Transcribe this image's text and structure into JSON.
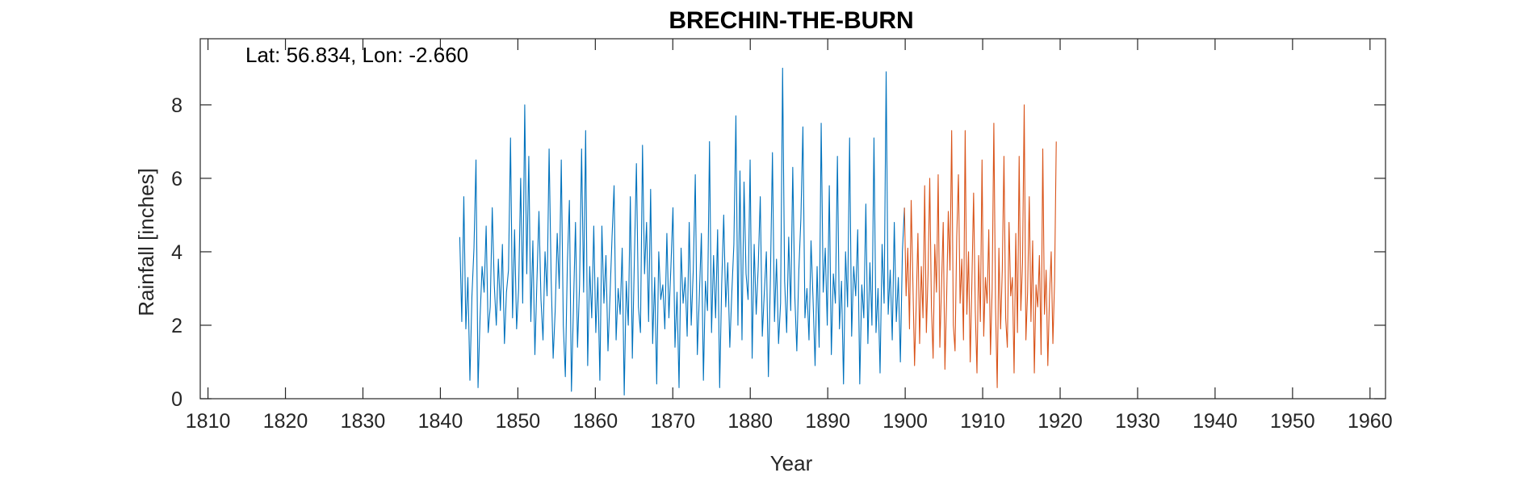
{
  "chart_data": {
    "type": "line",
    "title": "BRECHIN-THE-BURN",
    "annotation": "Lat: 56.834, Lon: -2.660",
    "xlabel": "Year",
    "ylabel": "Rainfall [inches]",
    "xlim": [
      1809,
      1962
    ],
    "ylim": [
      0,
      9.8
    ],
    "xticks": [
      1810,
      1820,
      1830,
      1840,
      1850,
      1860,
      1870,
      1880,
      1890,
      1900,
      1910,
      1920,
      1930,
      1940,
      1950,
      1960
    ],
    "yticks": [
      0,
      2,
      4,
      6,
      8
    ],
    "grid": false,
    "series": [
      {
        "x_start": 1842.5,
        "x_end": 1899.9,
        "step": 0.0833,
        "color": "#0072BD",
        "values": [
          4.4,
          2.1,
          5.5,
          1.9,
          3.3,
          0.5,
          2.8,
          4.1,
          6.5,
          0.3,
          2.2,
          3.6,
          2.9,
          4.7,
          1.8,
          2.5,
          5.2,
          3.1,
          2.0,
          3.8,
          2.4,
          4.2,
          1.5,
          2.9,
          3.5,
          7.1,
          2.2,
          4.6,
          1.9,
          3.0,
          6.0,
          2.6,
          8.0,
          3.4,
          6.6,
          2.1,
          4.3,
          1.2,
          3.2,
          5.1,
          2.7,
          1.6,
          4.0,
          2.8,
          6.8,
          3.3,
          1.1,
          2.4,
          4.5,
          3.0,
          6.5,
          2.0,
          0.6,
          3.7,
          5.4,
          0.2,
          2.5,
          4.8,
          1.4,
          3.1,
          6.8,
          2.9,
          7.3,
          0.9,
          3.6,
          2.2,
          4.7,
          1.8,
          3.3,
          0.5,
          4.7,
          2.6,
          3.9,
          1.3,
          2.8,
          4.4,
          5.8,
          1.6,
          3.0,
          2.3,
          4.1,
          0.1,
          3.2,
          2.0,
          5.5,
          1.1,
          3.8,
          6.4,
          2.5,
          1.8,
          6.9,
          3.4,
          4.8,
          2.1,
          5.7,
          1.5,
          3.3,
          0.4,
          4.0,
          2.7,
          3.1,
          1.9,
          4.5,
          2.2,
          3.6,
          5.2,
          1.4,
          2.9,
          0.3,
          4.1,
          2.6,
          3.3,
          1.7,
          4.8,
          2.0,
          3.5,
          6.1,
          1.2,
          2.8,
          4.5,
          0.5,
          3.2,
          2.4,
          7.0,
          1.8,
          3.9,
          2.2,
          4.6,
          0.3,
          3.1,
          5.0,
          2.5,
          3.7,
          1.4,
          2.9,
          4.2,
          7.7,
          2.0,
          6.2,
          1.6,
          5.9,
          3.4,
          2.7,
          6.5,
          1.1,
          4.2,
          2.3,
          3.6,
          5.5,
          1.7,
          2.9,
          4.0,
          0.6,
          3.3,
          6.7,
          2.1,
          3.8,
          1.5,
          2.6,
          9.0,
          3.2,
          1.8,
          4.4,
          2.4,
          6.3,
          2.8,
          1.3,
          3.5,
          4.9,
          7.4,
          2.2,
          3.0,
          1.6,
          4.3,
          2.7,
          0.9,
          3.6,
          1.4,
          7.5,
          2.9,
          4.1,
          2.0,
          5.8,
          1.2,
          3.4,
          2.6,
          6.6,
          1.9,
          3.2,
          0.4,
          4.0,
          2.5,
          7.1,
          1.7,
          3.6,
          2.8,
          4.6,
          0.4,
          3.1,
          2.2,
          5.3,
          1.5,
          3.7,
          2.0,
          7.1,
          1.8,
          3.0,
          0.7,
          4.2,
          2.6,
          8.9,
          2.3,
          3.5,
          1.6,
          4.8,
          2.1,
          3.3,
          1.0,
          4.0,
          5.2
        ]
      },
      {
        "x_start": 1899.9,
        "x_end": 1919.5,
        "step": 0.0833,
        "color": "#D95319",
        "values": [
          5.2,
          2.8,
          4.1,
          1.9,
          5.4,
          3.2,
          0.9,
          2.6,
          4.5,
          1.5,
          3.6,
          2.2,
          5.8,
          1.8,
          3.4,
          6.0,
          2.5,
          1.1,
          4.2,
          2.9,
          6.1,
          1.4,
          3.1,
          4.8,
          0.8,
          2.7,
          5.1,
          3.5,
          7.3,
          2.0,
          1.3,
          4.4,
          6.1,
          2.6,
          3.8,
          1.6,
          7.3,
          2.3,
          4.0,
          1.0,
          3.2,
          5.6,
          2.4,
          0.7,
          3.9,
          2.1,
          6.5,
          1.7,
          3.3,
          2.6,
          4.6,
          1.2,
          3.0,
          7.5,
          2.5,
          0.3,
          4.1,
          1.9,
          3.5,
          6.6,
          2.2,
          1.4,
          4.8,
          2.8,
          3.3,
          0.7,
          4.5,
          1.8,
          6.6,
          2.4,
          3.7,
          8.0,
          1.6,
          2.9,
          5.5,
          2.1,
          4.3,
          0.7,
          3.1,
          2.5,
          3.9,
          1.2,
          6.8,
          2.3,
          3.5,
          0.9,
          2.8,
          4.0,
          1.5,
          3.2,
          7.0
        ]
      }
    ]
  }
}
